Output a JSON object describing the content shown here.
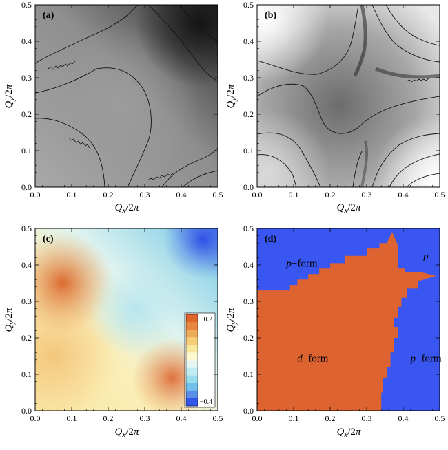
{
  "panels": [
    {
      "id": "a",
      "label": "(a)",
      "xlabel": "Q_x/2π",
      "ylabel": "Q_y/2π",
      "xticks": [
        "0.0",
        "0.1",
        "0.2",
        "0.3",
        "0.4",
        "0.5"
      ],
      "yticks": [
        "0.0",
        "0.1",
        "0.2",
        "0.3",
        "0.4",
        "0.5"
      ]
    },
    {
      "id": "b",
      "label": "(b)",
      "xlabel": "Q_x/2π",
      "ylabel": "Q_y/2π",
      "xticks": [
        "0.0",
        "0.1",
        "0.2",
        "0.3",
        "0.4",
        "0.5"
      ],
      "yticks": [
        "0.0",
        "0.1",
        "0.2",
        "0.3",
        "0.4",
        "0.5"
      ]
    },
    {
      "id": "c",
      "label": "(c)",
      "xlabel": "Q_x/2π",
      "ylabel": "Q_y/2π",
      "xticks": [
        "0.0",
        "0.1",
        "0.2",
        "0.3",
        "0.4",
        "0.5"
      ],
      "yticks": [
        "0.0",
        "0.1",
        "0.2",
        "0.3",
        "0.4",
        "0.5"
      ],
      "colorbar": {
        "top_label": "−0.2",
        "bottom_label": "−0.4",
        "colors": [
          "#e0652a",
          "#e8883e",
          "#efac58",
          "#f5cc78",
          "#f9e79e",
          "#fcf8cf",
          "#e4f5f3",
          "#c2ebf0",
          "#99dcec",
          "#6fc1eb",
          "#5a90ea",
          "#3355e8"
        ]
      }
    },
    {
      "id": "d",
      "label": "(d)",
      "xlabel": "Q_x/2π",
      "ylabel": "Q_y/2π",
      "xticks": [
        "0.0",
        "0.1",
        "0.2",
        "0.3",
        "0.4",
        "0.5"
      ],
      "yticks": [
        "0.0",
        "0.1",
        "0.2",
        "0.3",
        "0.4",
        "0.5"
      ],
      "regions": [
        {
          "text_italic": "p",
          "text_rest": "−form",
          "x": 0.08,
          "y": 0.395
        },
        {
          "text_italic": "p",
          "text_rest": "",
          "x": 0.455,
          "y": 0.415
        },
        {
          "text_italic": "d",
          "text_rest": "−form",
          "x": 0.11,
          "y": 0.135
        },
        {
          "text_italic": "p",
          "text_rest": "−form",
          "x": 0.42,
          "y": 0.135
        }
      ]
    }
  ],
  "colors": {
    "phase_d": "#dd6430",
    "phase_p": "#3a56f0"
  },
  "chart_data": [
    {
      "type": "heatmap",
      "panel": "a",
      "xlabel": "Q_x/2π",
      "ylabel": "Q_y/2π",
      "xlim": [
        0,
        0.5
      ],
      "ylim": [
        0,
        0.5
      ],
      "colormap": "grayscale"
    },
    {
      "type": "heatmap",
      "panel": "b",
      "xlabel": "Q_x/2π",
      "ylabel": "Q_y/2π",
      "xlim": [
        0,
        0.5
      ],
      "ylim": [
        0,
        0.5
      ],
      "colormap": "grayscale"
    },
    {
      "type": "heatmap",
      "panel": "c",
      "xlabel": "Q_x/2π",
      "ylabel": "Q_y/2π",
      "xlim": [
        0,
        0.5
      ],
      "ylim": [
        0,
        0.5
      ],
      "colorbar_range": [
        -0.4,
        -0.2
      ]
    },
    {
      "type": "heatmap",
      "panel": "d",
      "xlabel": "Q_x/2π",
      "ylabel": "Q_y/2π",
      "xlim": [
        0,
        0.5
      ],
      "ylim": [
        0,
        0.5
      ],
      "d_form_boundary": [
        [
          0.0,
          0.33
        ],
        [
          0.09,
          0.33
        ],
        [
          0.09,
          0.345
        ],
        [
          0.11,
          0.345
        ],
        [
          0.11,
          0.36
        ],
        [
          0.14,
          0.36
        ],
        [
          0.14,
          0.375
        ],
        [
          0.17,
          0.375
        ],
        [
          0.17,
          0.39
        ],
        [
          0.2,
          0.39
        ],
        [
          0.2,
          0.405
        ],
        [
          0.24,
          0.405
        ],
        [
          0.24,
          0.425
        ],
        [
          0.3,
          0.425
        ],
        [
          0.3,
          0.445
        ],
        [
          0.335,
          0.445
        ],
        [
          0.335,
          0.46
        ],
        [
          0.355,
          0.46
        ],
        [
          0.37,
          0.49
        ],
        [
          0.385,
          0.455
        ],
        [
          0.385,
          0.39
        ],
        [
          0.405,
          0.39
        ],
        [
          0.405,
          0.38
        ],
        [
          0.45,
          0.38
        ],
        [
          0.49,
          0.37
        ],
        [
          0.44,
          0.355
        ],
        [
          0.44,
          0.335
        ],
        [
          0.41,
          0.335
        ],
        [
          0.41,
          0.31
        ],
        [
          0.395,
          0.31
        ],
        [
          0.395,
          0.285
        ],
        [
          0.385,
          0.285
        ],
        [
          0.385,
          0.255
        ],
        [
          0.375,
          0.255
        ],
        [
          0.375,
          0.23
        ],
        [
          0.385,
          0.23
        ],
        [
          0.385,
          0.2
        ],
        [
          0.375,
          0.2
        ],
        [
          0.375,
          0.16
        ],
        [
          0.365,
          0.16
        ],
        [
          0.365,
          0.12
        ],
        [
          0.355,
          0.12
        ],
        [
          0.355,
          0.09
        ],
        [
          0.345,
          0.09
        ],
        [
          0.345,
          0.05
        ],
        [
          0.34,
          0.05
        ],
        [
          0.34,
          0.0
        ],
        [
          0.0,
          0.0
        ]
      ]
    }
  ]
}
